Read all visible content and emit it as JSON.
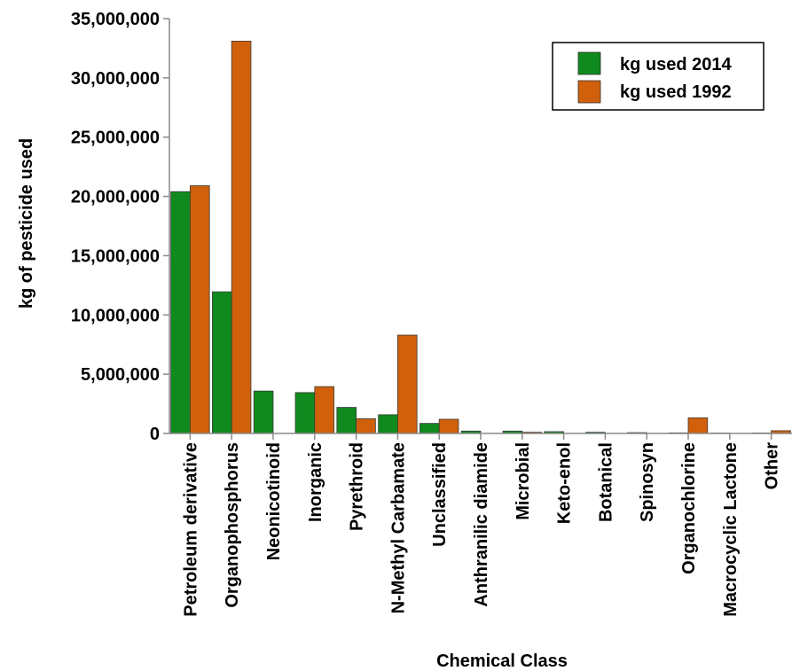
{
  "chart_data": {
    "type": "bar",
    "title": "",
    "xlabel": "Chemical Class",
    "ylabel": "kg of pesticide used",
    "ylim": [
      0,
      35000000
    ],
    "y_ticks": [
      0,
      5000000,
      10000000,
      15000000,
      20000000,
      25000000,
      30000000,
      35000000
    ],
    "y_tick_labels": [
      "0",
      "5,000,000",
      "10,000,000",
      "15,000,000",
      "20,000,000",
      "25,000,000",
      "30,000,000",
      "35,000,000"
    ],
    "categories": [
      "Petroleum derivative",
      "Organophosphorus",
      "Neonicotinoid",
      "Inorganic",
      "Pyrethroid",
      "N-Methyl Carbamate",
      "Unclassified",
      "Anthranilic diamide",
      "Microbial",
      "Keto-enol",
      "Botanical",
      "Spinosyn",
      "Organochlorine",
      "Macrocyclic Lactone",
      "Other"
    ],
    "series": [
      {
        "name": "kg used 2014",
        "color": "#108a1e",
        "values": [
          20400000,
          11950000,
          3580000,
          3450000,
          2200000,
          1580000,
          850000,
          200000,
          200000,
          150000,
          100000,
          70000,
          50000,
          30000,
          40000
        ]
      },
      {
        "name": "kg used 1992",
        "color": "#d0600b",
        "values": [
          20900000,
          33100000,
          0,
          3950000,
          1240000,
          8300000,
          1200000,
          0,
          100000,
          0,
          0,
          0,
          1320000,
          0,
          230000
        ]
      }
    ],
    "legend_position": "top-right",
    "grid": false
  }
}
